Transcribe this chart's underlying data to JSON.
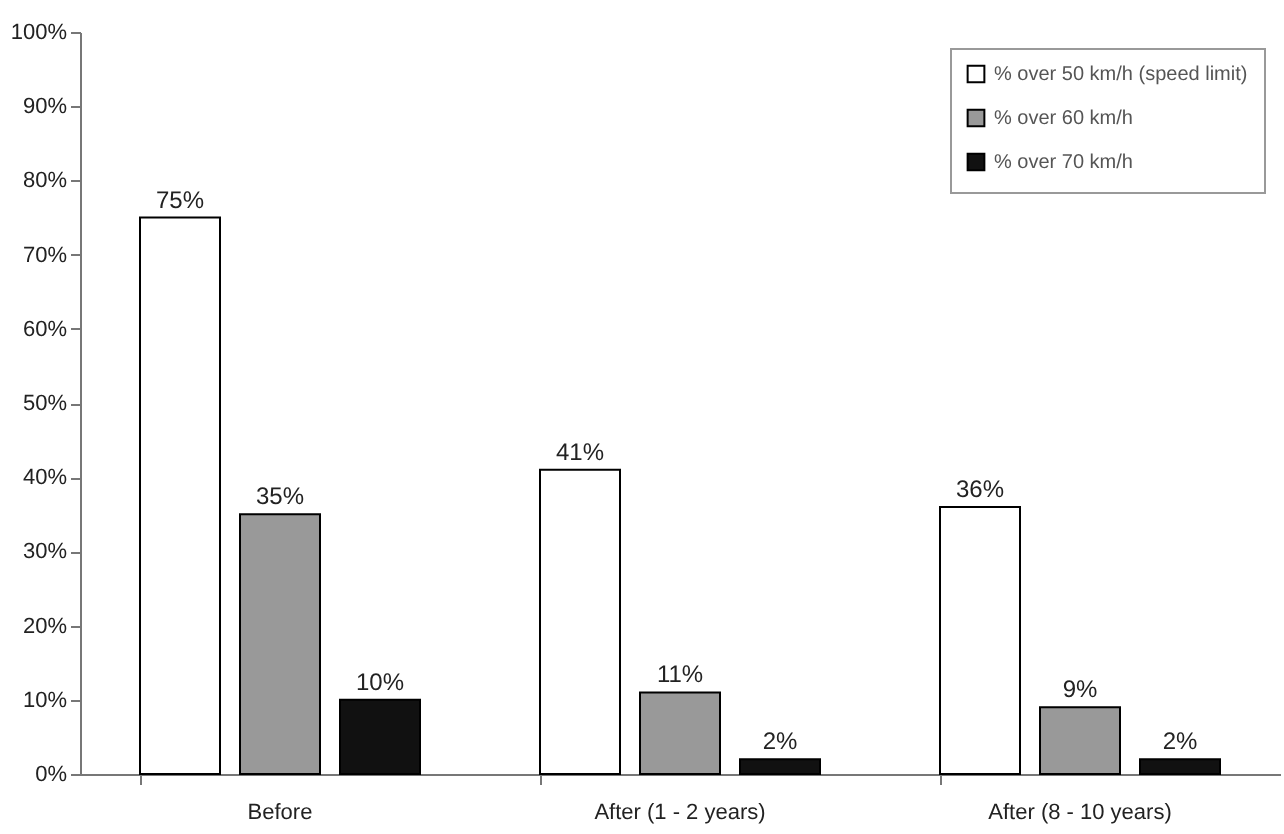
{
  "chart_data": {
    "type": "bar",
    "categories": [
      "Before",
      "After (1 - 2 years)",
      "After (8 - 10 years)"
    ],
    "series": [
      {
        "name": "% over 50 km/h (speed limit)",
        "color": "#ffffff",
        "values": [
          75,
          41,
          36
        ]
      },
      {
        "name": "% over 60 km/h",
        "color": "#999999",
        "values": [
          35,
          11,
          9
        ]
      },
      {
        "name": "% over 70 km/h",
        "color": "#111111",
        "values": [
          10,
          2,
          2
        ]
      }
    ],
    "ylim": [
      0,
      100
    ],
    "yticks": [
      {
        "value": 0,
        "label": "0%"
      },
      {
        "value": 10,
        "label": "10%"
      },
      {
        "value": 20,
        "label": "20%"
      },
      {
        "value": 30,
        "label": "30%"
      },
      {
        "value": 40,
        "label": "40%"
      },
      {
        "value": 50,
        "label": "50%"
      },
      {
        "value": 60,
        "label": "60%"
      },
      {
        "value": 70,
        "label": "70%"
      },
      {
        "value": 80,
        "label": "80%"
      },
      {
        "value": 90,
        "label": "90%"
      },
      {
        "value": 100,
        "label": "100%"
      }
    ],
    "value_labels": [
      [
        "75%",
        "41%",
        "36%"
      ],
      [
        "35%",
        "11%",
        "9%"
      ],
      [
        "10%",
        "2%",
        "2%"
      ]
    ],
    "legend": "top right",
    "grid": false
  }
}
